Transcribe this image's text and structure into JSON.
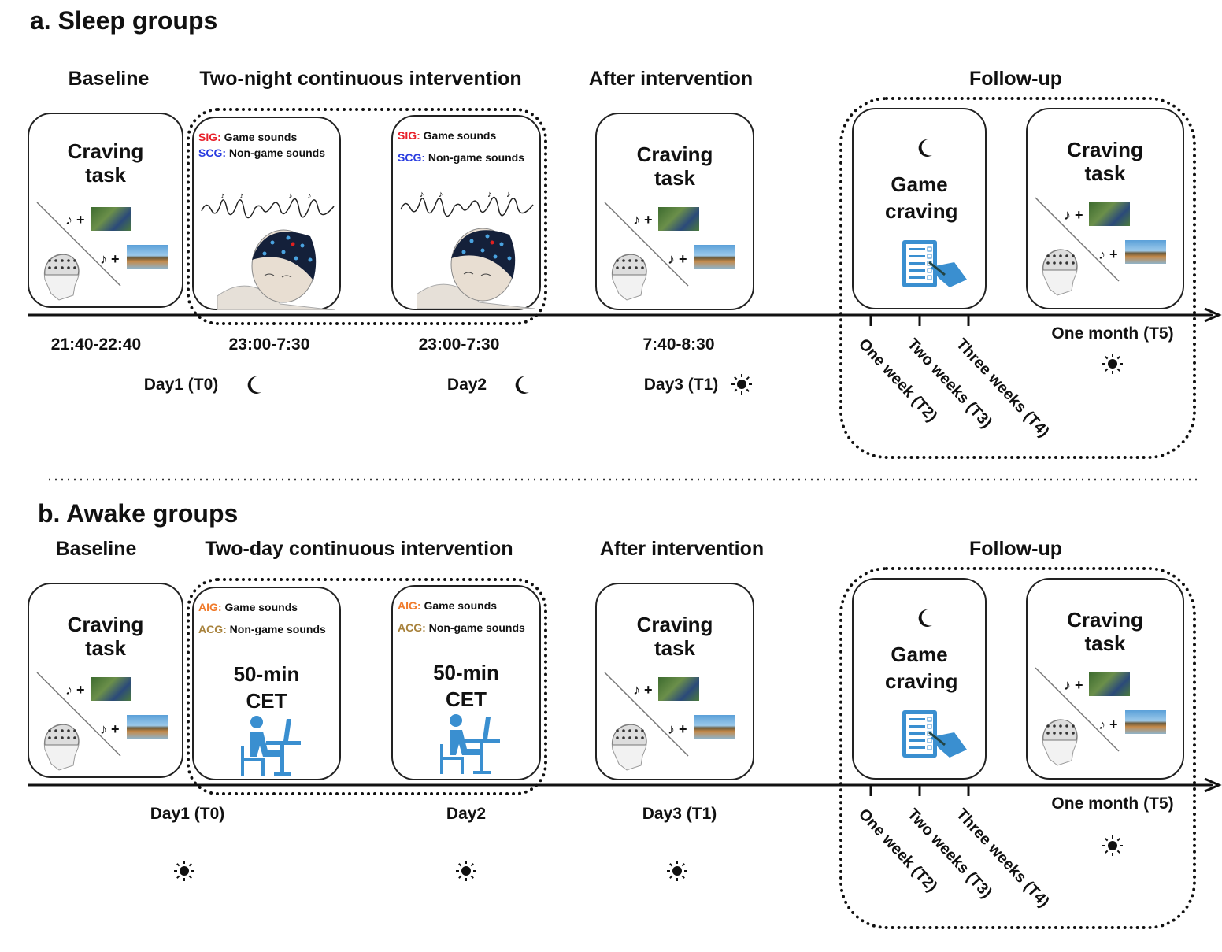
{
  "panels": {
    "sleep": {
      "title": "a.  Sleep groups",
      "headings": {
        "baseline": "Baseline",
        "intervention": "Two-night continuous intervention",
        "after": "After intervention",
        "followup": "Follow-up"
      },
      "craving_task": "Craving task",
      "game_craving": "Game craving",
      "intervention_boxes": [
        {
          "line1_key": "SIG:",
          "line1_text": "Game sounds",
          "line2_key": "SCG:",
          "line2_text": "Non-game sounds"
        },
        {
          "line1_key": "SIG:",
          "line1_text": "Game sounds",
          "line2_key": "SCG:",
          "line2_text": "Non-game sounds"
        }
      ],
      "key_colors": [
        "#e8202a",
        "#2a3de0"
      ],
      "times": [
        "21:40-22:40",
        "23:00-7:30",
        "23:00-7:30",
        "7:40-8:30"
      ],
      "days": [
        {
          "label": "Day1 (T0)",
          "icon": "moon"
        },
        {
          "label": "Day2",
          "icon": "moon"
        },
        {
          "label": "Day3 (T1)",
          "icon": "sun"
        }
      ],
      "followups": [
        "One week (T2)",
        "Two weeks (T3)",
        "Three weeks (T4)"
      ],
      "one_month": "One month (T5)"
    },
    "awake": {
      "title": "b. Awake groups",
      "headings": {
        "baseline": "Baseline",
        "intervention": "Two-day continuous intervention",
        "after": "After intervention",
        "followup": "Follow-up"
      },
      "craving_task": "Craving task",
      "game_craving": "Game craving",
      "intervention_boxes": [
        {
          "line1_key": "AIG:",
          "line1_text": "Game sounds",
          "line2_key": "ACG:",
          "line2_text": "Non-game sounds",
          "cet": "50-min CET"
        },
        {
          "line1_key": "AIG:",
          "line1_text": "Game sounds",
          "line2_key": "ACG:",
          "line2_text": "Non-game sounds",
          "cet": "50-min CET"
        }
      ],
      "key_colors": [
        "#f07a2a",
        "#a8823c"
      ],
      "days": [
        {
          "label": "Day1 (T0)",
          "icon": "sun"
        },
        {
          "label": "Day2",
          "icon": "sun"
        },
        {
          "label": "Day3 (T1)",
          "icon": "sun"
        }
      ],
      "followups": [
        "One week (T2)",
        "Two weeks (T3)",
        "Three weeks (T4)"
      ],
      "one_month": "One month (T5)"
    }
  },
  "icon_color": "#3a8fd0"
}
